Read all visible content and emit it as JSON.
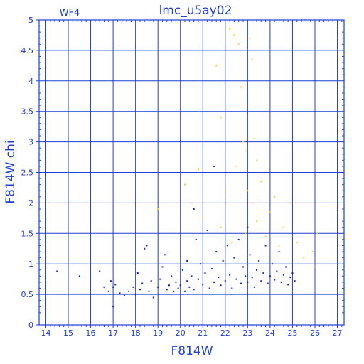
{
  "chart_data": {
    "type": "scatter",
    "title": "lmc_u5ay02",
    "panel_label": "WF4",
    "xlabel": "F814W",
    "ylabel": "F814W chi",
    "xlim": [
      13.7,
      27.3
    ],
    "ylim": [
      0,
      5
    ],
    "x_ticks": [
      14,
      15,
      16,
      17,
      18,
      19,
      20,
      21,
      22,
      23,
      24,
      25,
      26,
      27
    ],
    "y_ticks": [
      0,
      0.5,
      1,
      1.5,
      2,
      2.5,
      3,
      3.5,
      4,
      4.5,
      5
    ],
    "x_tick_labels": [
      "14",
      "15",
      "16",
      "17",
      "18",
      "19",
      "20",
      "21",
      "22",
      "23",
      "24",
      "25",
      "26",
      "27"
    ],
    "y_tick_labels": [
      "0",
      "0.5",
      "1",
      "1.5",
      "2",
      "2.5",
      "3",
      "3.5",
      "4",
      "4.5",
      "5"
    ],
    "grid": true,
    "colors": {
      "axis": "#1f3fd6",
      "grid": "#1f3fd6",
      "stars": "#0a1ee0",
      "rejected": "#f2d21b"
    },
    "series": [
      {
        "color": "#0a1ee0",
        "points": [
          [
            14.5,
            0.88
          ],
          [
            15.5,
            0.8
          ],
          [
            16.4,
            0.88
          ],
          [
            16.6,
            0.62
          ],
          [
            16.8,
            0.55
          ],
          [
            16.9,
            0.72
          ],
          [
            17.0,
            0.62
          ],
          [
            17.0,
            0.3
          ],
          [
            17.1,
            0.66
          ],
          [
            17.3,
            0.52
          ],
          [
            17.5,
            0.48
          ],
          [
            17.7,
            0.55
          ],
          [
            17.9,
            0.62
          ],
          [
            18.0,
            0.5
          ],
          [
            18.1,
            0.85
          ],
          [
            18.2,
            0.58
          ],
          [
            18.3,
            0.68
          ],
          [
            18.4,
            1.25
          ],
          [
            18.5,
            1.3
          ],
          [
            18.6,
            0.55
          ],
          [
            18.7,
            0.72
          ],
          [
            18.8,
            0.45
          ],
          [
            19.0,
            0.62
          ],
          [
            19.1,
            0.75
          ],
          [
            19.2,
            0.95
          ],
          [
            19.3,
            1.15
          ],
          [
            19.4,
            0.58
          ],
          [
            19.5,
            0.65
          ],
          [
            19.6,
            0.8
          ],
          [
            19.7,
            0.55
          ],
          [
            19.8,
            0.7
          ],
          [
            19.9,
            0.6
          ],
          [
            20.0,
            0.65
          ],
          [
            20.1,
            0.9
          ],
          [
            20.2,
            0.55
          ],
          [
            20.3,
            1.05
          ],
          [
            20.3,
            0.72
          ],
          [
            20.4,
            0.62
          ],
          [
            20.5,
            0.8
          ],
          [
            20.6,
            0.58
          ],
          [
            20.6,
            1.9
          ],
          [
            20.7,
            1.4
          ],
          [
            20.8,
            0.75
          ],
          [
            20.9,
            1.0
          ],
          [
            21.0,
            0.66
          ],
          [
            21.1,
            0.85
          ],
          [
            21.2,
            1.55
          ],
          [
            21.3,
            0.6
          ],
          [
            21.4,
            0.92
          ],
          [
            21.5,
            0.7
          ],
          [
            21.5,
            2.6
          ],
          [
            21.6,
            1.2
          ],
          [
            21.7,
            0.78
          ],
          [
            21.8,
            0.65
          ],
          [
            21.9,
            1.05
          ],
          [
            22.0,
            0.72
          ],
          [
            22.1,
            1.3
          ],
          [
            22.2,
            0.82
          ],
          [
            22.3,
            0.6
          ],
          [
            22.4,
            1.1
          ],
          [
            22.5,
            0.75
          ],
          [
            22.6,
            1.4
          ],
          [
            22.7,
            0.68
          ],
          [
            22.8,
            0.95
          ],
          [
            22.9,
            0.8
          ],
          [
            23.0,
            1.6
          ],
          [
            23.0,
            0.7
          ],
          [
            23.1,
            1.15
          ],
          [
            23.2,
            0.78
          ],
          [
            23.3,
            0.62
          ],
          [
            23.4,
            0.9
          ],
          [
            23.5,
            1.05
          ],
          [
            23.6,
            0.72
          ],
          [
            23.7,
            0.85
          ],
          [
            23.8,
            1.3
          ],
          [
            23.9,
            0.68
          ],
          [
            24.0,
            0.8
          ],
          [
            24.1,
            1.0
          ],
          [
            24.2,
            0.74
          ],
          [
            24.3,
            0.88
          ],
          [
            24.4,
            1.2
          ],
          [
            24.5,
            0.7
          ],
          [
            24.6,
            0.82
          ],
          [
            24.7,
            0.95
          ],
          [
            24.8,
            0.66
          ],
          [
            24.9,
            0.78
          ],
          [
            25.0,
            0.85
          ],
          [
            25.1,
            0.72
          ]
        ]
      },
      {
        "color": "#f2d21b",
        "points": [
          [
            19.0,
            1.9
          ],
          [
            20.2,
            2.3
          ],
          [
            20.5,
            2.0
          ],
          [
            20.8,
            2.55
          ],
          [
            21.0,
            1.75
          ],
          [
            21.6,
            4.25
          ],
          [
            21.8,
            1.6
          ],
          [
            21.8,
            3.4
          ],
          [
            22.0,
            2.2
          ],
          [
            22.2,
            4.85
          ],
          [
            22.3,
            1.35
          ],
          [
            22.4,
            4.75
          ],
          [
            22.5,
            2.6
          ],
          [
            22.6,
            4.6
          ],
          [
            22.7,
            3.9
          ],
          [
            22.8,
            3.0
          ],
          [
            22.9,
            1.5
          ],
          [
            22.9,
            2.85
          ],
          [
            23.0,
            2.2
          ],
          [
            23.1,
            4.7
          ],
          [
            23.2,
            4.35
          ],
          [
            23.2,
            2.0
          ],
          [
            23.3,
            3.05
          ],
          [
            23.4,
            1.7
          ],
          [
            23.4,
            2.7
          ],
          [
            23.6,
            2.35
          ],
          [
            23.8,
            1.45
          ],
          [
            24.0,
            1.85
          ],
          [
            24.2,
            2.1
          ],
          [
            24.4,
            1.3
          ],
          [
            24.6,
            1.6
          ],
          [
            24.9,
            2.0
          ],
          [
            25.2,
            1.35
          ],
          [
            25.5,
            1.1
          ],
          [
            25.9,
            1.2
          ],
          [
            26.0,
            0.95
          ],
          [
            26.1,
            1.5
          ]
        ]
      }
    ]
  }
}
